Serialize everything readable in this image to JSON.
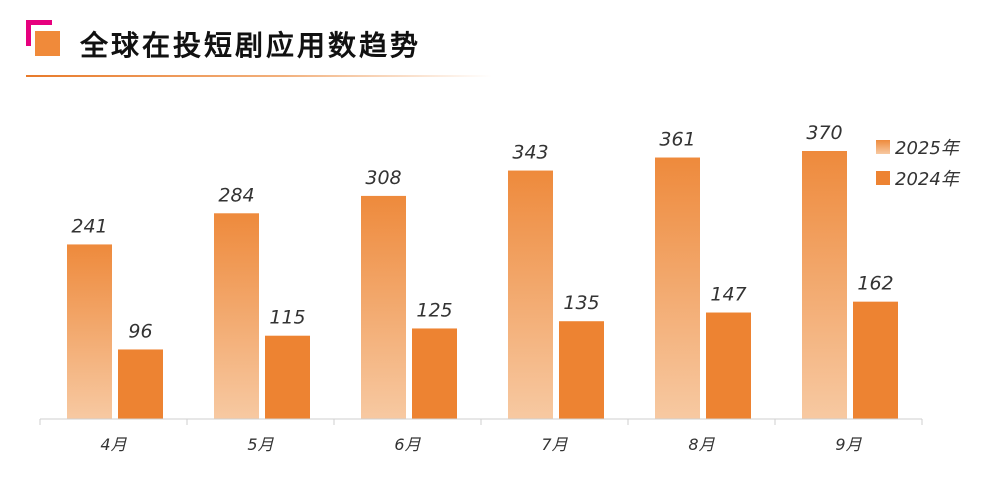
{
  "header": {
    "title": "全球在投短剧应用数趋势"
  },
  "colors": {
    "accent_pink": "#e6007e",
    "accent_orange": "#f08a3a",
    "bar_2024": "#ed8332",
    "bar_2025_top": "#ee8a3c",
    "bar_2025_bottom": "#f7c9a2"
  },
  "chart_data": {
    "type": "bar",
    "categories": [
      "4月",
      "5月",
      "6月",
      "7月",
      "8月",
      "9月"
    ],
    "series": [
      {
        "name": "2025年",
        "values": [
          241,
          284,
          308,
          343,
          361,
          370
        ]
      },
      {
        "name": "2024年",
        "values": [
          96,
          115,
          125,
          135,
          147,
          162
        ]
      }
    ],
    "title": "全球在投短剧应用数趋势",
    "xlabel": "",
    "ylabel": "",
    "ylim": [
      0,
      370
    ],
    "grid": false,
    "legend": "top-right",
    "data_labels": true
  }
}
